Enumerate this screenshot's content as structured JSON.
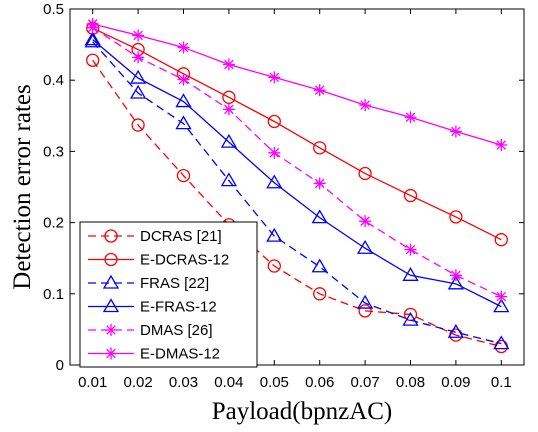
{
  "chart_data": {
    "type": "line",
    "title": "",
    "xlabel": "Payload(bpnzAC)",
    "ylabel": "Detection error rates",
    "x": [
      0.01,
      0.02,
      0.03,
      0.04,
      0.05,
      0.06,
      0.07,
      0.08,
      0.09,
      0.1
    ],
    "x_tick_labels": [
      "0.01",
      "0.02",
      "0.03",
      "0.04",
      "0.05",
      "0.06",
      "0.07",
      "0.08",
      "0.09",
      "0.1"
    ],
    "y_ticks": [
      0,
      0.1,
      0.2,
      0.3,
      0.4,
      0.5
    ],
    "y_tick_labels": [
      "0",
      "0.1",
      "0.2",
      "0.3",
      "0.4",
      "0.5"
    ],
    "xlim": [
      0.005,
      0.105
    ],
    "ylim": [
      0,
      0.5
    ],
    "grid": false,
    "legend_position": "bottom-left",
    "series": [
      {
        "name": "DCRAS [21]",
        "color": "#ff0000",
        "dash": "dashed",
        "marker": "circle",
        "values": [
          0.428,
          0.337,
          0.266,
          0.197,
          0.139,
          0.1,
          0.076,
          0.071,
          0.042,
          0.026
        ]
      },
      {
        "name": "E-DCRAS-12",
        "color": "#ff0000",
        "dash": "solid",
        "marker": "circle",
        "values": [
          0.473,
          0.443,
          0.409,
          0.376,
          0.342,
          0.305,
          0.269,
          0.238,
          0.208,
          0.176
        ]
      },
      {
        "name": "FRAS [22]",
        "color": "#0000ff",
        "dash": "dashed",
        "marker": "triangle",
        "values": [
          0.454,
          0.382,
          0.339,
          0.259,
          0.181,
          0.138,
          0.087,
          0.063,
          0.046,
          0.03
        ]
      },
      {
        "name": "E-FRAS-12",
        "color": "#0000ff",
        "dash": "solid",
        "marker": "triangle",
        "values": [
          0.457,
          0.403,
          0.37,
          0.313,
          0.256,
          0.207,
          0.164,
          0.126,
          0.114,
          0.082
        ]
      },
      {
        "name": "DMAS [26]",
        "color": "#ff00ff",
        "dash": "dashed",
        "marker": "asterisk",
        "values": [
          0.474,
          0.432,
          0.401,
          0.359,
          0.298,
          0.255,
          0.202,
          0.162,
          0.126,
          0.096
        ]
      },
      {
        "name": "E-DMAS-12",
        "color": "#ff00ff",
        "dash": "solid",
        "marker": "asterisk",
        "values": [
          0.479,
          0.463,
          0.446,
          0.422,
          0.404,
          0.386,
          0.365,
          0.348,
          0.328,
          0.309
        ]
      }
    ]
  }
}
